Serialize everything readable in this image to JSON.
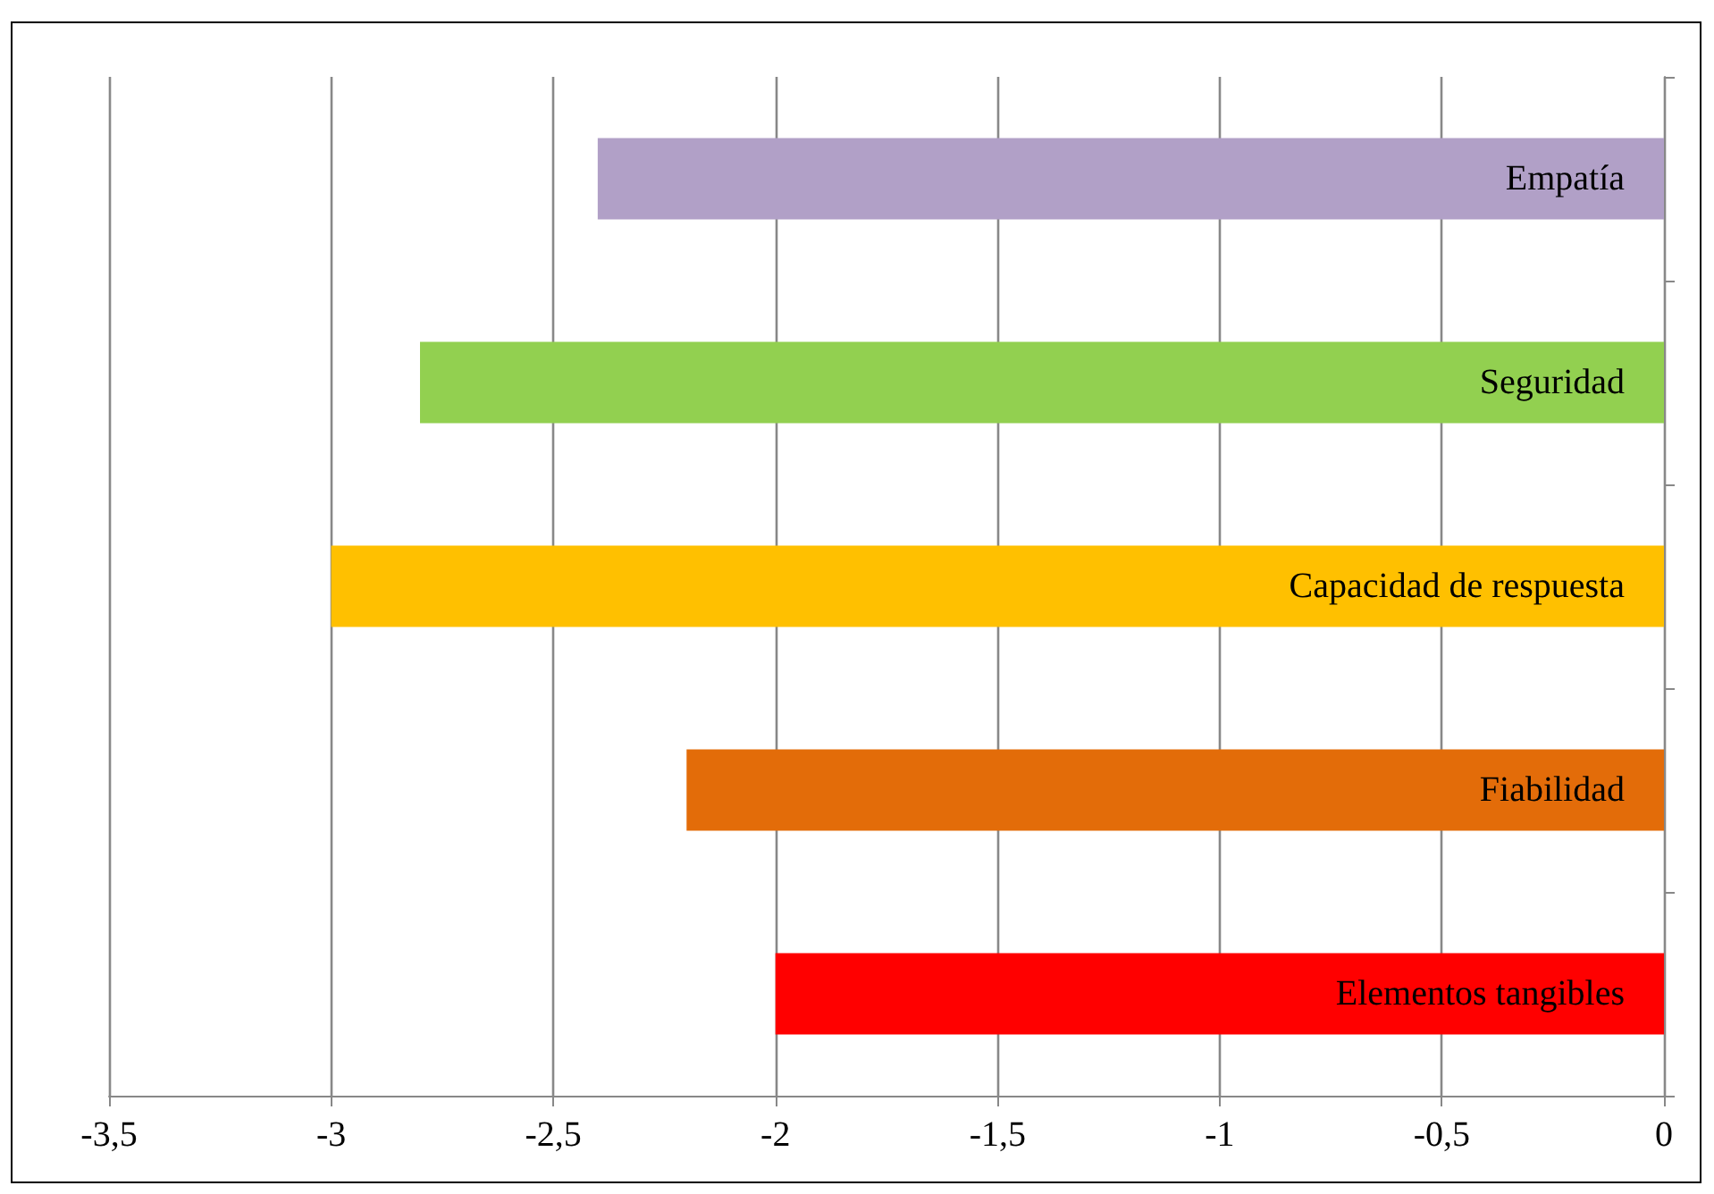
{
  "chart_data": {
    "type": "bar",
    "orientation": "horizontal",
    "categories": [
      "Empatía",
      "Seguridad",
      "Capacidad de respuesta",
      "Fiabilidad",
      "Elementos tangibles"
    ],
    "values": [
      -2.4,
      -2.8,
      -3.0,
      -2.2,
      -2.0
    ],
    "colors": [
      "#b1a0c7",
      "#92d050",
      "#ffc000",
      "#e36c09",
      "#ff0000"
    ],
    "xlim": [
      -3.5,
      0
    ],
    "xticks": [
      {
        "value": -3.5,
        "label": "-3,5"
      },
      {
        "value": -3,
        "label": "-3"
      },
      {
        "value": -2.5,
        "label": "-2,5"
      },
      {
        "value": -2,
        "label": "-2"
      },
      {
        "value": -1.5,
        "label": "-1,5"
      },
      {
        "value": -1,
        "label": "-1"
      },
      {
        "value": -0.5,
        "label": "-0,5"
      },
      {
        "value": 0,
        "label": "0"
      }
    ],
    "grid": "x"
  }
}
